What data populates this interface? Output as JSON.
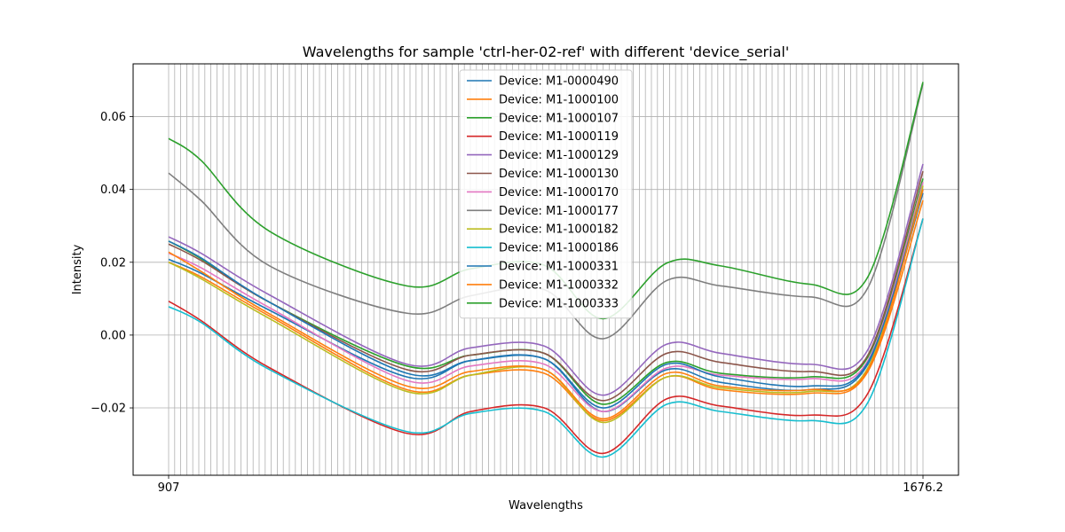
{
  "chart_data": {
    "type": "line",
    "title": "Wavelengths for sample 'ctrl-her-02-ref' with different 'device_serial'",
    "xlabel": "Wavelengths",
    "ylabel": "Intensity",
    "x_tick_first": "907",
    "x_tick_last": "1676.2",
    "xlim": [
      907,
      1676.2
    ],
    "x_step_count": 125,
    "ylim": [
      -0.0385,
      0.0745
    ],
    "y_ticks": [
      -0.02,
      0.0,
      0.02,
      0.04,
      0.06
    ],
    "y_tick_labels": [
      "−0.02",
      "0.00",
      "0.02",
      "0.04",
      "0.06"
    ],
    "grid": true,
    "legend_location": "upper center",
    "feature_x": [
      907,
      940,
      1010,
      1150,
      1215,
      1290,
      1350,
      1415,
      1470,
      1560,
      1620,
      1676.2
    ],
    "series": [
      {
        "name": "Device: M1-0000490",
        "color": "#1f77b4",
        "values": [
          0.0208,
          0.017,
          0.0068,
          -0.0115,
          -0.007,
          -0.0065,
          -0.021,
          -0.0095,
          -0.013,
          -0.015,
          -0.008,
          0.039
        ]
      },
      {
        "name": "Device: M1-1000100",
        "color": "#ff7f0e",
        "values": [
          0.02,
          0.016,
          0.0052,
          -0.015,
          -0.011,
          -0.0105,
          -0.0235,
          -0.0115,
          -0.015,
          -0.016,
          -0.01,
          0.037
        ]
      },
      {
        "name": "Device: M1-1000107",
        "color": "#2ca02c",
        "values": [
          0.0258,
          0.021,
          0.009,
          -0.0085,
          -0.0055,
          -0.005,
          -0.019,
          -0.0075,
          -0.0105,
          -0.0115,
          -0.006,
          0.043
        ]
      },
      {
        "name": "Device: M1-1000119",
        "color": "#d62728",
        "values": [
          0.0093,
          0.004,
          -0.009,
          -0.027,
          -0.021,
          -0.02,
          -0.0325,
          -0.0175,
          -0.0195,
          -0.022,
          -0.016,
          0.032
        ]
      },
      {
        "name": "Device: M1-1000129",
        "color": "#9467bd",
        "values": [
          0.027,
          0.0225,
          0.011,
          -0.008,
          -0.0035,
          -0.003,
          -0.0165,
          -0.0025,
          -0.005,
          -0.008,
          -0.004,
          0.047
        ]
      },
      {
        "name": "Device: M1-1000130",
        "color": "#8c564b",
        "values": [
          0.025,
          0.0205,
          0.009,
          -0.0095,
          -0.0055,
          -0.005,
          -0.018,
          -0.005,
          -0.0075,
          -0.01,
          -0.0055,
          0.045
        ]
      },
      {
        "name": "Device: M1-1000170",
        "color": "#e377c2",
        "values": [
          0.0225,
          0.0185,
          0.0075,
          -0.0125,
          -0.0085,
          -0.008,
          -0.021,
          -0.009,
          -0.011,
          -0.012,
          -0.007,
          0.042
        ]
      },
      {
        "name": "Device: M1-1000177",
        "color": "#7f7f7f",
        "values": [
          0.0445,
          0.037,
          0.019,
          0.006,
          0.0108,
          0.0125,
          -0.001,
          0.015,
          0.0135,
          0.0105,
          0.013,
          0.069
        ]
      },
      {
        "name": "Device: M1-1000182",
        "color": "#bcbd22",
        "values": [
          0.02,
          0.0155,
          0.0045,
          -0.0155,
          -0.011,
          -0.0095,
          -0.024,
          -0.0115,
          -0.0145,
          -0.0155,
          -0.009,
          0.041
        ]
      },
      {
        "name": "Device: M1-1000186",
        "color": "#17becf",
        "values": [
          0.0078,
          0.0035,
          -0.0095,
          -0.0265,
          -0.0215,
          -0.021,
          -0.0335,
          -0.019,
          -0.021,
          -0.0235,
          -0.0185,
          0.032
        ]
      },
      {
        "name": "Device: M1-1000331",
        "color": "#1f77b4",
        "values": [
          0.0258,
          0.0212,
          0.009,
          -0.0105,
          -0.007,
          -0.0065,
          -0.02,
          -0.008,
          -0.0115,
          -0.014,
          -0.0075,
          0.04
        ]
      },
      {
        "name": "Device: M1-1000332",
        "color": "#ff7f0e",
        "values": [
          0.0228,
          0.0175,
          0.0058,
          -0.014,
          -0.01,
          -0.0095,
          -0.023,
          -0.0105,
          -0.014,
          -0.015,
          -0.0095,
          0.04
        ]
      },
      {
        "name": "Device: M1-1000333",
        "color": "#2ca02c",
        "values": [
          0.054,
          0.048,
          0.0285,
          0.0135,
          0.0182,
          0.0192,
          0.0045,
          0.0198,
          0.019,
          0.014,
          0.016,
          0.0695
        ]
      }
    ]
  }
}
